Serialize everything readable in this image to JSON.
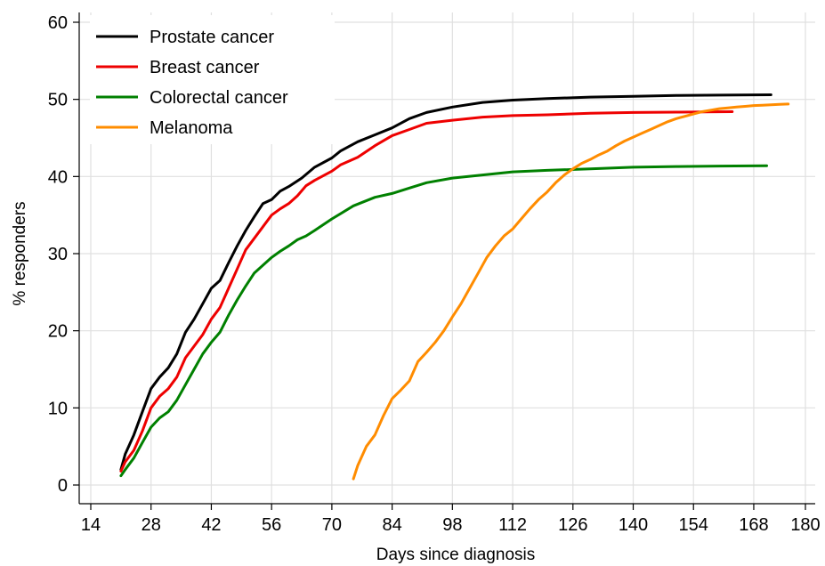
{
  "chart_data": {
    "type": "line",
    "title": "",
    "xlabel": "Days since diagnosis",
    "ylabel": "% responders",
    "xlim": [
      14,
      180
    ],
    "ylim": [
      0,
      60
    ],
    "xticks": [
      14,
      28,
      42,
      56,
      70,
      84,
      98,
      112,
      126,
      140,
      154,
      168,
      180
    ],
    "yticks": [
      0,
      10,
      20,
      30,
      40,
      50,
      60
    ],
    "grid": true,
    "legend_position": "top-left",
    "series": [
      {
        "name": "Prostate cancer",
        "color": "#000000",
        "x": [
          21,
          22,
          24,
          26,
          28,
          30,
          32,
          34,
          36,
          38,
          40,
          42,
          44,
          46,
          48,
          50,
          52,
          54,
          56,
          58,
          60,
          63,
          66,
          70,
          72,
          76,
          80,
          84,
          88,
          92,
          98,
          105,
          112,
          120,
          130,
          140,
          150,
          160,
          172
        ],
        "values": [
          2,
          4,
          6.5,
          9.5,
          12.5,
          14,
          15.2,
          17,
          19.8,
          21.5,
          23.5,
          25.5,
          26.5,
          28.8,
          31,
          33,
          34.8,
          36.5,
          37,
          38.1,
          38.7,
          39.8,
          41.2,
          42.4,
          43.3,
          44.5,
          45.4,
          46.3,
          47.5,
          48.3,
          49,
          49.6,
          49.9,
          50.1,
          50.3,
          50.4,
          50.5,
          50.55,
          50.6
        ]
      },
      {
        "name": "Breast cancer",
        "color": "#ee0000",
        "x": [
          21,
          22,
          24,
          26,
          28,
          30,
          32,
          34,
          36,
          38,
          40,
          42,
          44,
          46,
          48,
          50,
          52,
          54,
          56,
          58,
          60,
          62,
          64,
          66,
          70,
          72,
          76,
          80,
          84,
          88,
          92,
          98,
          105,
          112,
          120,
          130,
          140,
          150,
          163
        ],
        "values": [
          1.8,
          3,
          4.5,
          7,
          10,
          11.5,
          12.5,
          14,
          16.5,
          18,
          19.5,
          21.5,
          23,
          25.5,
          28,
          30.5,
          32,
          33.5,
          35,
          35.8,
          36.5,
          37.5,
          38.8,
          39.5,
          40.7,
          41.5,
          42.5,
          44,
          45.3,
          46.1,
          46.9,
          47.3,
          47.7,
          47.9,
          48,
          48.2,
          48.3,
          48.35,
          48.4
        ]
      },
      {
        "name": "Colorectal cancer",
        "color": "#008000",
        "x": [
          21,
          22,
          24,
          26,
          28,
          30,
          32,
          34,
          36,
          38,
          40,
          42,
          44,
          46,
          48,
          50,
          52,
          54,
          56,
          58,
          60,
          62,
          64,
          66,
          70,
          75,
          80,
          84,
          88,
          92,
          98,
          105,
          112,
          120,
          130,
          140,
          150,
          160,
          171
        ],
        "values": [
          1.2,
          2,
          3.5,
          5.5,
          7.5,
          8.7,
          9.5,
          11,
          13,
          15,
          17,
          18.5,
          19.8,
          22,
          24,
          25.8,
          27.5,
          28.5,
          29.5,
          30.3,
          31,
          31.8,
          32.3,
          33,
          34.5,
          36.2,
          37.3,
          37.8,
          38.5,
          39.2,
          39.8,
          40.2,
          40.6,
          40.8,
          41,
          41.2,
          41.3,
          41.35,
          41.4
        ]
      },
      {
        "name": "Melanoma",
        "color": "#ff8c00",
        "x": [
          75,
          76,
          78,
          80,
          82,
          84,
          86,
          88,
          90,
          92,
          94,
          96,
          98,
          100,
          102,
          104,
          106,
          108,
          110,
          112,
          114,
          116,
          118,
          120,
          122,
          124,
          126,
          128,
          130,
          132,
          134,
          136,
          138,
          140,
          142,
          144,
          146,
          148,
          150,
          152,
          154,
          156,
          158,
          160,
          162,
          164,
          166,
          168,
          170,
          172,
          174,
          176
        ],
        "values": [
          0.8,
          2.5,
          5,
          6.5,
          9,
          11.2,
          12.3,
          13.5,
          16,
          17.2,
          18.5,
          20,
          21.8,
          23.5,
          25.5,
          27.5,
          29.5,
          31,
          32.3,
          33.2,
          34.5,
          35.8,
          37,
          38,
          39.2,
          40.2,
          41,
          41.7,
          42.2,
          42.8,
          43.3,
          44,
          44.6,
          45.1,
          45.6,
          46.1,
          46.6,
          47.1,
          47.5,
          47.8,
          48.1,
          48.4,
          48.6,
          48.8,
          48.9,
          49,
          49.1,
          49.2,
          49.25,
          49.3,
          49.35,
          49.4
        ]
      }
    ]
  }
}
